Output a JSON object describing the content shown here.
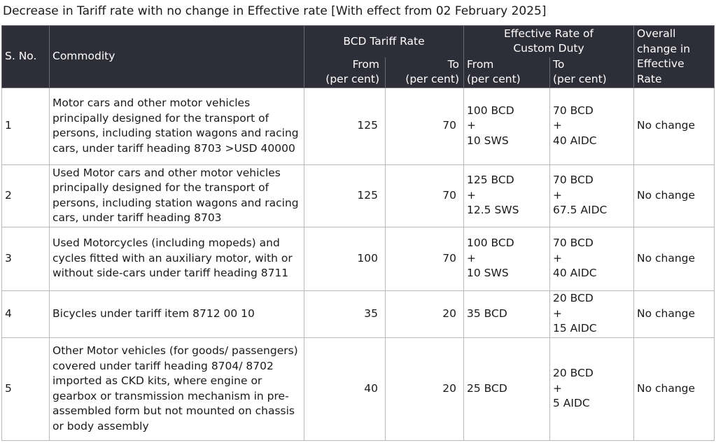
{
  "title": "Decrease in Tariff rate with no change in Effective rate [With effect from 02 February 2025]",
  "headers": {
    "sno": "S. No.",
    "commodity": "Commodity",
    "bcd_group": "BCD Tariff Rate",
    "eff_group_line1": "Effective Rate of",
    "eff_group_line2": "Custom Duty",
    "overall_line1": "Overall",
    "overall_line2": "change in",
    "overall_line3": "Effective",
    "overall_line4": "Rate",
    "bcd_from": "From",
    "bcd_from_unit": "(per cent)",
    "bcd_to": "To",
    "bcd_to_unit": "(per cent)",
    "eff_from": "From",
    "eff_from_unit": "(per cent)",
    "eff_to": "To",
    "eff_to_unit": "(per cent)"
  },
  "rows": [
    {
      "sno": "1",
      "commodity": "Motor cars and other motor vehicles principally designed for the transport of persons, including station wagons and racing cars, under tariff heading 8703 >USD 40000",
      "bcd_from": "125",
      "bcd_to": "70",
      "eff_from": [
        "100 BCD",
        "+",
        " 10 SWS"
      ],
      "eff_to": [
        "70 BCD",
        "+",
        "40 AIDC"
      ],
      "overall": "No change"
    },
    {
      "sno": "2",
      "commodity": "Used Motor cars and other motor vehicles principally designed for the transport of persons, including station wagons and racing cars, under tariff heading 8703",
      "bcd_from": "125",
      "bcd_to": "70",
      "eff_from": [
        "125 BCD",
        "+",
        "12.5 SWS"
      ],
      "eff_to": [
        "70 BCD",
        "+",
        "67.5 AIDC"
      ],
      "overall": "No change"
    },
    {
      "sno": "3",
      "commodity": "Used Motorcycles (including mopeds) and cycles fitted with an auxiliary motor, with or without side-cars under tariff heading 8711",
      "bcd_from": "100",
      "bcd_to": "70",
      "eff_from": [
        "100 BCD",
        "+",
        "10 SWS"
      ],
      "eff_to": [
        "70 BCD",
        "+",
        "40 AIDC"
      ],
      "overall": "No change"
    },
    {
      "sno": "4",
      "commodity": "Bicycles under tariff item 8712 00 10",
      "bcd_from": "35",
      "bcd_to": "20",
      "eff_from": [
        "35 BCD"
      ],
      "eff_to": [
        "20 BCD",
        "+",
        "15 AIDC"
      ],
      "overall": "No change"
    },
    {
      "sno": "5",
      "commodity": "Other Motor vehicles (for goods/ passengers) covered under tariff heading 8704/ 8702 imported  as CKD kits, where engine or gearbox or transmission mechanism in pre-assembled form but not mounted on chassis or body assembly",
      "bcd_from": "40",
      "bcd_to": "20",
      "eff_from": [
        "25 BCD"
      ],
      "eff_to": [
        "20 BCD",
        "+",
        "5 AIDC"
      ],
      "overall": "No change"
    }
  ]
}
